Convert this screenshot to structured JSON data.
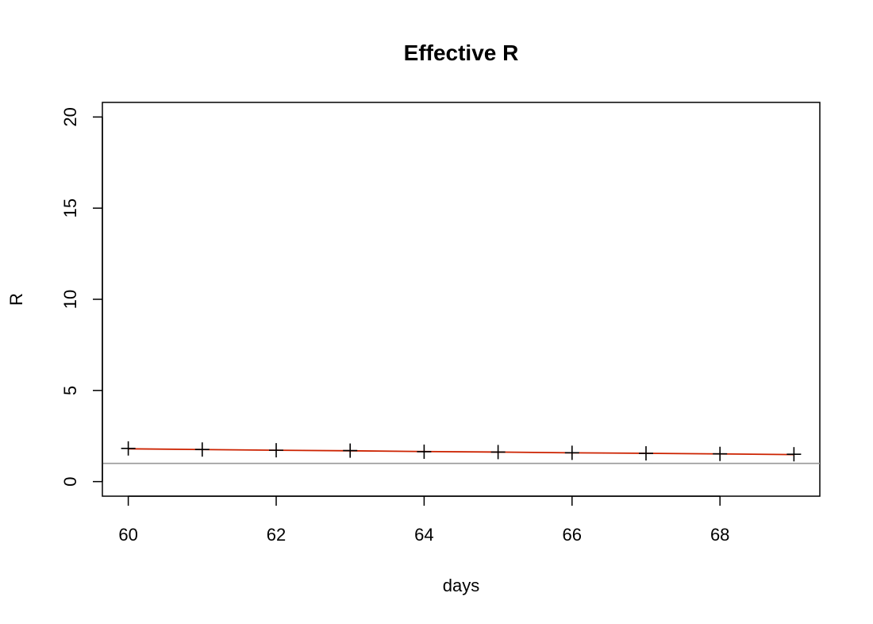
{
  "chart_data": {
    "type": "line",
    "title": "Effective R",
    "xlabel": "days",
    "ylabel": "R",
    "xlim": [
      59.65,
      69.35
    ],
    "ylim": [
      -0.8,
      20.8
    ],
    "xticks": [
      60,
      62,
      64,
      66,
      68
    ],
    "yticks": [
      0,
      5,
      10,
      15,
      20
    ],
    "reference_line": {
      "y": 1,
      "color": "#999999"
    },
    "series": [
      {
        "type": "line",
        "color": "#cc2200",
        "x": [
          60,
          61,
          62,
          63,
          64,
          65,
          66,
          67,
          68,
          69
        ],
        "y": [
          1.8,
          1.76,
          1.72,
          1.69,
          1.65,
          1.62,
          1.58,
          1.55,
          1.52,
          1.48
        ]
      },
      {
        "type": "points",
        "marker": "plus",
        "color": "#000000",
        "x": [
          60,
          61,
          62,
          63,
          64,
          65,
          66,
          67,
          68,
          69
        ],
        "y": [
          1.82,
          1.76,
          1.72,
          1.7,
          1.64,
          1.62,
          1.58,
          1.55,
          1.52,
          1.5
        ]
      }
    ]
  }
}
